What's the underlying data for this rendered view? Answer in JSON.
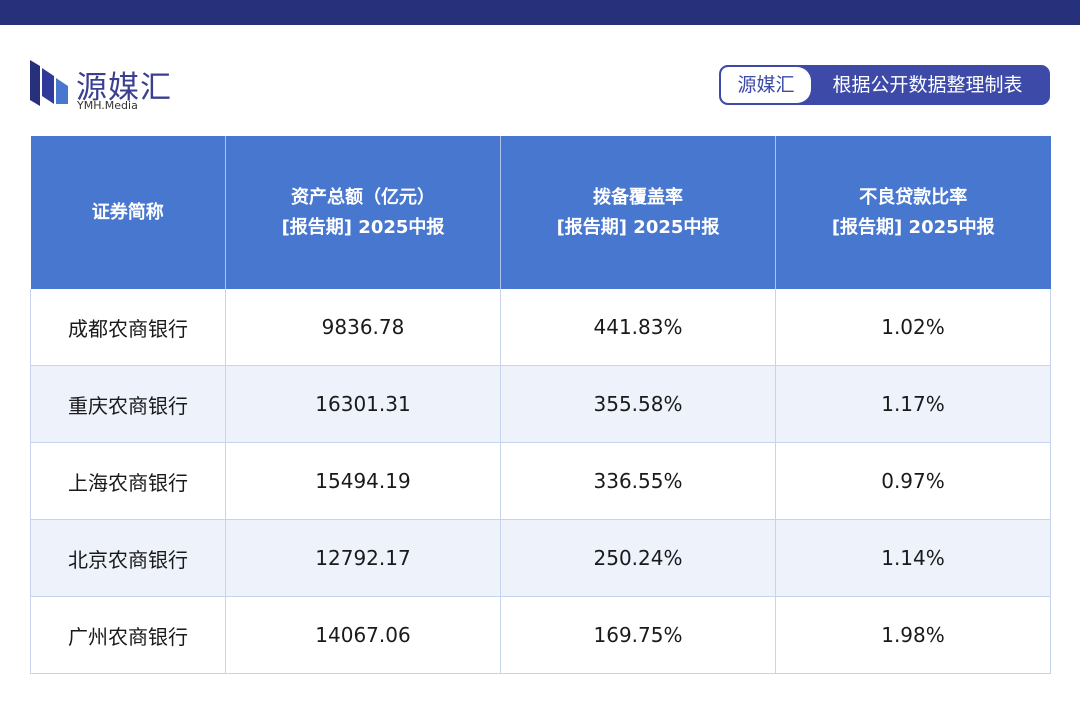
{
  "brand": {
    "name": "源媒汇",
    "subtitle": "YMH.Media",
    "color": "#3a3f8f"
  },
  "source_badge": {
    "left": "源媒汇",
    "right": "根据公开数据整理制表"
  },
  "table": {
    "headers": [
      {
        "line1": "证券简称",
        "line2": ""
      },
      {
        "line1": "资产总额（亿元）",
        "line2": "[报告期] 2025中报"
      },
      {
        "line1": "拨备覆盖率",
        "line2": "[报告期] 2025中报"
      },
      {
        "line1": "不良贷款比率",
        "line2": "[报告期] 2025中报"
      }
    ],
    "rows": [
      [
        "成都农商银行",
        "9836.78",
        "441.83%",
        "1.02%"
      ],
      [
        "重庆农商银行",
        "16301.31",
        "355.58%",
        "1.17%"
      ],
      [
        "上海农商银行",
        "15494.19",
        "336.55%",
        "0.97%"
      ],
      [
        "北京农商银行",
        "12792.17",
        "250.24%",
        "1.14%"
      ],
      [
        "广州农商银行",
        "14067.06",
        "169.75%",
        "1.98%"
      ]
    ]
  },
  "colors": {
    "top_bar": "#27307a",
    "header_bg": "#4877cf",
    "stripe_bg": "#edf2fb",
    "badge": "#3d4aa8"
  }
}
